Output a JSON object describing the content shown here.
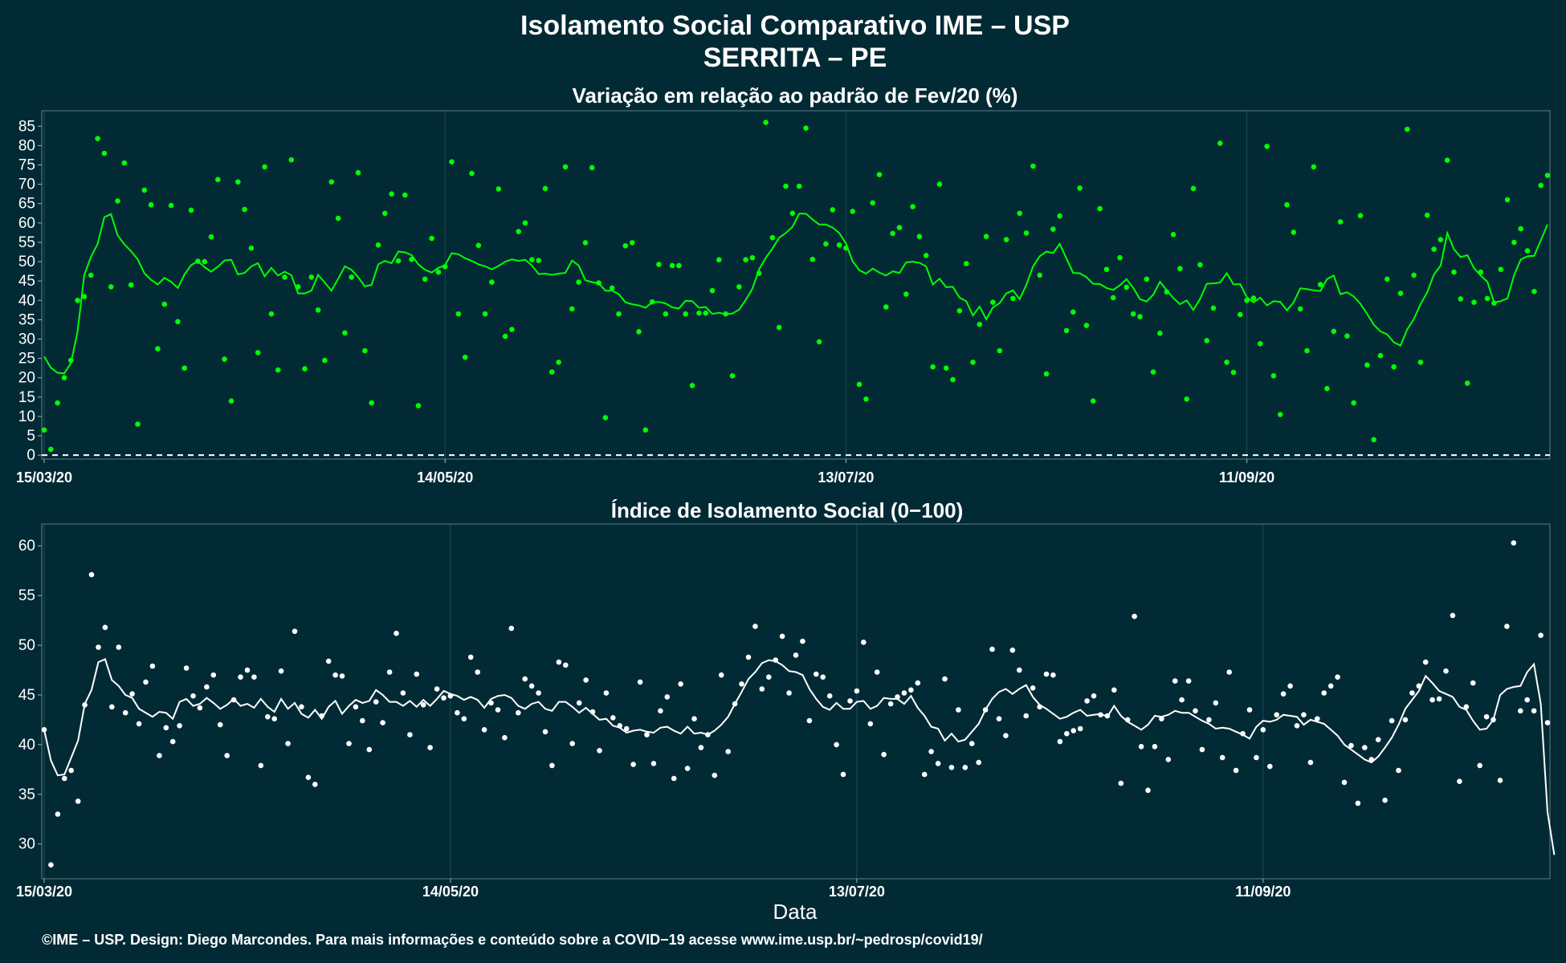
{
  "header": {
    "title": "Isolamento Social Comparativo IME – USP",
    "subtitle": "SERRITA – PE"
  },
  "x_axis": {
    "label": "Data",
    "ticks": [
      "15/03/20",
      "14/05/20",
      "13/07/20",
      "11/09/20"
    ]
  },
  "footer": {
    "credit": "©IME – USP. Design: Diego Marcondes. Para mais informações e conteúdo sobre a COVID−19 acesse www.ime.usp.br/~pedrosp/covid19/"
  },
  "colors": {
    "background": "#022a35",
    "top_series": "#00ff00",
    "bottom_series": "#ffffff",
    "grid": "#1d4a52"
  },
  "chart_data": [
    {
      "type": "scatter",
      "title": "Variação em relação ao padrão de Fev/20 (%)",
      "x_start": "15/03/20",
      "x_step_days": 1,
      "ylim": [
        -1,
        89
      ],
      "yticks": [
        0,
        5,
        10,
        15,
        20,
        25,
        30,
        35,
        40,
        45,
        50,
        55,
        60,
        65,
        70,
        75,
        80,
        85
      ],
      "reference_line": 0,
      "grid": true,
      "values": [
        6.5,
        1.5,
        13.5,
        20,
        24.5,
        40,
        41,
        46.5,
        81.8,
        78,
        43.5,
        65.7,
        75.5,
        44,
        8,
        68.5,
        64.7,
        27.5,
        39,
        64.5,
        34.5,
        22.5,
        63.3,
        50.1,
        50,
        56.4,
        71.2,
        24.8,
        14,
        70.6,
        63.5,
        53.5,
        26.5,
        74.5,
        36.5,
        22,
        46,
        76.3,
        43.5,
        22.3,
        46,
        37.5,
        24.5,
        70.6,
        61.2,
        31.6,
        46,
        73,
        27,
        13.5,
        54.3,
        62.5,
        67.5,
        50.2,
        67.2,
        50.6,
        12.8,
        45.5,
        56,
        47.3,
        48.7,
        75.8,
        36.5,
        25.3,
        72.8,
        54.2,
        36.5,
        44.7,
        68.8,
        30.7,
        32.5,
        57.8,
        60,
        50.5,
        50.3,
        68.9,
        21.5,
        24,
        74.5,
        37.8,
        44.7,
        54.9,
        74.3,
        44.5,
        9.7,
        43.2,
        36.5,
        54.1,
        54.9,
        31.9,
        6.5,
        39.6,
        49.3,
        36.5,
        49,
        49,
        36.5,
        18,
        36.7,
        36.7,
        42.5,
        50.5,
        36.5,
        20.5,
        43.5,
        50.5,
        51,
        47,
        86,
        56.2,
        33,
        69.5,
        62.5,
        69.5,
        84.5,
        50.6,
        29.3,
        54.6,
        63.4,
        54.3,
        53.5,
        63,
        18.3,
        14.5,
        65.2,
        72.5,
        38.3,
        57.3,
        58.8,
        41.6,
        64.2,
        56.5,
        51.6,
        22.8,
        70,
        22.5,
        19.5,
        37.3,
        49.5,
        24,
        33.8,
        56.5,
        39.5,
        27,
        55.7,
        40.5,
        62.5,
        57.4,
        74.7,
        46.5,
        21,
        58.4,
        61.8,
        32.2,
        37,
        69,
        33.5,
        14,
        63.7,
        48,
        40.7,
        51,
        43.4,
        36.5,
        35.8,
        45.5,
        21.5,
        31.5,
        42.2,
        57,
        48.2,
        14.5,
        68.9,
        49.2,
        29.6,
        38,
        80.6,
        24,
        21.4,
        36.3,
        40,
        40.6,
        28.8,
        79.8,
        20.5,
        10.5,
        64.7,
        57.6,
        37.8,
        27,
        74.5,
        44.1,
        17.2,
        32,
        60.3,
        30.8,
        13.5,
        61.9,
        23.3,
        4,
        25.7,
        45.5,
        22.8,
        41.8,
        84.2,
        46.5,
        24,
        62,
        53.2,
        55.7,
        76.2,
        47.3,
        40.4,
        18.6,
        39.5,
        47.3,
        40.5,
        39.3,
        48,
        66,
        55,
        58.5,
        52.8,
        42.3,
        69.7,
        72.3
      ],
      "moving_average": [
        25.5,
        22.6,
        21.3,
        21.1,
        23.8,
        31.9,
        46.5,
        51.2,
        54.6,
        61.5,
        62.3,
        56.8,
        54.5,
        52.7,
        50.6,
        47,
        45.3,
        44.1,
        45.8,
        44.8,
        43.2,
        46.7,
        49.1,
        50.1,
        48.6,
        47.4,
        48.7,
        50.3,
        50.5,
        46.7,
        47.1,
        48.8,
        49.6,
        46.2,
        48.4,
        46.4,
        47.4,
        46.5,
        41.8,
        41.8,
        42.5,
        46.6,
        44.6,
        42.5,
        45.6,
        48.8,
        47.9,
        46,
        43.6,
        44,
        49.3,
        50.2,
        49.6,
        52.6,
        52.4,
        51.7,
        49.3,
        47.9,
        47.2,
        48.4,
        49.1,
        52.2,
        51.9,
        50.9,
        50.2,
        49.3,
        48.8,
        48,
        48.9,
        50,
        50.6,
        50.2,
        50.5,
        49,
        46.8,
        46.9,
        46.6,
        46.9,
        47.1,
        50.3,
        49,
        45.2,
        44.7,
        44.4,
        42.5,
        42.5,
        41.6,
        39.5,
        39,
        38.7,
        38.1,
        39.5,
        39.6,
        39.2,
        38.2,
        37.9,
        39.9,
        39.8,
        38.1,
        38.3,
        36.5,
        36.8,
        36.4,
        36.6,
        37.6,
        40.1,
        43,
        48,
        51,
        53.4,
        56.2,
        57.4,
        59,
        62.4,
        62.4,
        60.9,
        59.6,
        59.6,
        58.8,
        57.4,
        54.7,
        50.1,
        47.8,
        46.9,
        48.2,
        47.2,
        46.4,
        47.5,
        47.1,
        49.8,
        50,
        49.7,
        48.8,
        44.1,
        45.6,
        43.4,
        43.5,
        40.7,
        39.8,
        36.1,
        38.4,
        35.1,
        38.2,
        39.3,
        41.8,
        42.6,
        40.3,
        44,
        48.8,
        51.4,
        52.6,
        52.2,
        54.6,
        50.8,
        47.1,
        47,
        46,
        44.3,
        44.2,
        43.2,
        42.7,
        43.9,
        45.5,
        43.2,
        40.3,
        39.7,
        41.5,
        44.8,
        42.6,
        40.6,
        39,
        40,
        37.5,
        40.4,
        44.3,
        44.4,
        44.6,
        47,
        44.1,
        44.2,
        40.8,
        39.5,
        40.7,
        38.7,
        39.8,
        39.6,
        37.4,
        39.5,
        43.1,
        42.9,
        42.6,
        42.4,
        45.5,
        46.4,
        41.6,
        42.1,
        41,
        39.1,
        36.5,
        33.7,
        32,
        31.2,
        29.2,
        28.3,
        32.5,
        35.2,
        39,
        42.1,
        46.7,
        49,
        57.4,
        53.2,
        51.2,
        51.7,
        48.3,
        46.4,
        44.8,
        39.5,
        39.8,
        40.5,
        46.5,
        50.6,
        51.4,
        51.5,
        55.5,
        59.6
      ]
    },
    {
      "type": "scatter",
      "title": "Índice de Isolamento Social (0−100)",
      "x_start": "15/03/20",
      "x_step_days": 1,
      "ylim": [
        26.5,
        62.2
      ],
      "yticks": [
        30,
        35,
        40,
        45,
        50,
        55,
        60
      ],
      "grid": true,
      "values": [
        41.5,
        27.9,
        33,
        36.6,
        37.4,
        34.3,
        44,
        57.1,
        49.8,
        51.8,
        43.8,
        49.8,
        43.2,
        45.1,
        42.1,
        46.3,
        47.9,
        38.9,
        41.7,
        40.3,
        41.9,
        47.7,
        44.9,
        43.7,
        45.8,
        47,
        42,
        38.9,
        44.5,
        46.8,
        47.5,
        46.8,
        37.9,
        42.8,
        42.6,
        47.4,
        40.1,
        51.4,
        43.8,
        36.7,
        36,
        42.9,
        48.4,
        47,
        46.9,
        40.1,
        43.8,
        42.4,
        39.5,
        44.3,
        42.2,
        47.3,
        51.2,
        45.2,
        41,
        47.1,
        44,
        39.7,
        45.6,
        44.7,
        44.9,
        43.2,
        42.6,
        48.8,
        47.3,
        41.5,
        44.2,
        43.5,
        40.7,
        51.7,
        43.2,
        46.6,
        45.9,
        45.2,
        41.3,
        37.9,
        48.3,
        48,
        40.1,
        44.2,
        46.5,
        43.3,
        39.4,
        45.2,
        42.7,
        41.9,
        41.6,
        38,
        46.3,
        41,
        38.1,
        43.4,
        44.8,
        36.6,
        46.1,
        37.6,
        42.6,
        39.7,
        41,
        36.9,
        47,
        39.3,
        44.1,
        46.1,
        48.8,
        51.9,
        45.6,
        46.8,
        48.5,
        50.9,
        45.2,
        49,
        50.4,
        42.4,
        47.1,
        46.8,
        44.9,
        40,
        37,
        44.4,
        45.4,
        50.3,
        42.1,
        47.3,
        39,
        44.1,
        44.8,
        45.2,
        45.5,
        46.2,
        37,
        39.3,
        38.1,
        46.6,
        37.7,
        43.5,
        37.7,
        40.1,
        38.2,
        43.5,
        49.6,
        42.6,
        40.9,
        49.5,
        47.5,
        42.9,
        45.7,
        43.8,
        47.1,
        47,
        40.3,
        41.1,
        41.4,
        41.6,
        44.4,
        44.9,
        43,
        42.9,
        45.5,
        36.1,
        42.5,
        52.9,
        39.8,
        35.4,
        39.8,
        42.6,
        38.5,
        46.4,
        44.5,
        46.4,
        43.4,
        39.5,
        42.5,
        44.2,
        38.7,
        47.3,
        37.4,
        41.1,
        43.5,
        38.7,
        41.5,
        37.8,
        43,
        45.1,
        45.9,
        41.9,
        43,
        38.2,
        42.6,
        45.2,
        45.9,
        46.8,
        36.2,
        39.9,
        34.1,
        39.7,
        38.5,
        40.5,
        34.4,
        42.4,
        37.4,
        42.5,
        45.2,
        45.9,
        48.3,
        44.5,
        44.6,
        47.4,
        53,
        36.3,
        43.8,
        46.2,
        37.9,
        42.8,
        42.5,
        36.4,
        51.9,
        60.3,
        43.4,
        44.5,
        43.4,
        51,
        42.2
      ],
      "moving_average": [
        41.5,
        38.4,
        36.9,
        37,
        38.7,
        40.4,
        44.1,
        45.5,
        48.3,
        48.6,
        46.5,
        45.9,
        45,
        44.7,
        43.6,
        43.2,
        42.8,
        43.3,
        43.2,
        42.6,
        44.3,
        44.6,
        43.9,
        44.1,
        44.7,
        44.2,
        43.6,
        44,
        44.6,
        43.9,
        44.1,
        43.7,
        44.6,
        43.8,
        43.3,
        44.6,
        43.6,
        44.2,
        43.1,
        42.7,
        43.5,
        42.6,
        43.8,
        44.4,
        43.1,
        43.9,
        44.5,
        44.2,
        44.4,
        45.5,
        45,
        44.3,
        44.3,
        43.9,
        44.4,
        43.8,
        44.5,
        43.9,
        44.6,
        45.4,
        45.1,
        44.9,
        44.5,
        44.8,
        44.5,
        43.7,
        44.6,
        44.9,
        45,
        44.7,
        43.9,
        43.6,
        44.1,
        44.3,
        43.6,
        43.4,
        44.3,
        44.3,
        43.8,
        43.2,
        43.7,
        43.1,
        42.5,
        42.6,
        41.9,
        41.7,
        41.2,
        41.4,
        41.5,
        41.3,
        41.2,
        41.7,
        41.8,
        41.4,
        41.1,
        41.8,
        41.1,
        41.2,
        41,
        41.4,
        42,
        42.8,
        44.1,
        45.3,
        46.6,
        47.3,
        48.2,
        48.5,
        48.4,
        48,
        47.4,
        47.3,
        47,
        45.6,
        44.6,
        43.8,
        43.5,
        44.2,
        43.6,
        43.6,
        44.3,
        44.4,
        43.6,
        43.9,
        44.7,
        44.6,
        44.6,
        44.1,
        44.9,
        43.7,
        42.9,
        41.8,
        41.6,
        40.4,
        41.1,
        40.3,
        40.5,
        41.3,
        42.1,
        43.5,
        44.6,
        45.3,
        45.6,
        45.1,
        45.6,
        46,
        44.8,
        44,
        43.6,
        43.1,
        42.6,
        42.8,
        43.2,
        43.5,
        42.9,
        43,
        43.1,
        42.8,
        43.9,
        42.9,
        42.3,
        41.9,
        41.5,
        42,
        42.9,
        42.8,
        43,
        43.4,
        43.2,
        43.2,
        42.8,
        42.4,
        42.1,
        41.6,
        41.7,
        41.6,
        41.3,
        41,
        40.6,
        41.8,
        42.4,
        42.3,
        42.5,
        43,
        42.9,
        42.8,
        42,
        42.5,
        42.3,
        42.1,
        41.5,
        40.9,
        40,
        39.5,
        39,
        38.5,
        38.2,
        38.8,
        39.7,
        40.7,
        42,
        43.6,
        44.5,
        45.4,
        46.9,
        46.2,
        45.4,
        45.1,
        44.8,
        43.8,
        43.5,
        42.4,
        41.5,
        41.6,
        42.5,
        45,
        45.6,
        45.8,
        45.9,
        47.3,
        48.1,
        44.1,
        33.2,
        28.9
      ]
    }
  ]
}
